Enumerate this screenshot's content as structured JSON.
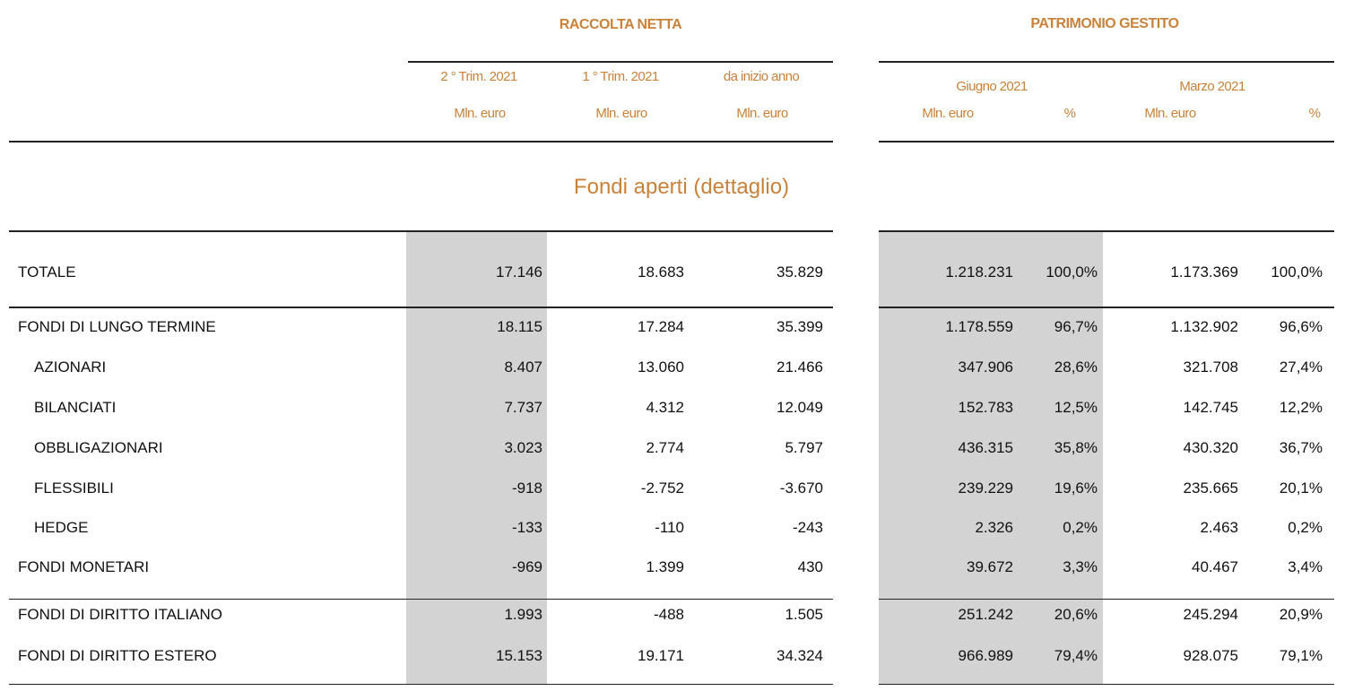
{
  "headers": {
    "raccolta_title": "RACCOLTA NETTA",
    "patrimonio_title": "PATRIMONIO GESTITO",
    "raccolta_cols": [
      "2 ° Trim. 2021",
      "1 ° Trim. 2021",
      "da inizio anno"
    ],
    "unit": "Mln. euro",
    "patrimonio_periods": [
      "Giugno 2021",
      "Marzo 2021"
    ],
    "pct": "%",
    "section_title": "Fondi aperti (dettaglio)"
  },
  "colors": {
    "accent": "#c8823a",
    "highlight": "#d3d3d3"
  },
  "rows": [
    {
      "label": "TOTALE",
      "indent": false,
      "values": [
        "17.146",
        "18.683",
        "35.829",
        "1.218.231",
        "100,0%",
        "1.173.369",
        "100,0%"
      ]
    },
    {
      "label": "FONDI DI LUNGO TERMINE",
      "indent": false,
      "values": [
        "18.115",
        "17.284",
        "35.399",
        "1.178.559",
        "96,7%",
        "1.132.902",
        "96,6%"
      ]
    },
    {
      "label": "AZIONARI",
      "indent": true,
      "values": [
        "8.407",
        "13.060",
        "21.466",
        "347.906",
        "28,6%",
        "321.708",
        "27,4%"
      ]
    },
    {
      "label": "BILANCIATI",
      "indent": true,
      "values": [
        "7.737",
        "4.312",
        "12.049",
        "152.783",
        "12,5%",
        "142.745",
        "12,2%"
      ]
    },
    {
      "label": "OBBLIGAZIONARI",
      "indent": true,
      "values": [
        "3.023",
        "2.774",
        "5.797",
        "436.315",
        "35,8%",
        "430.320",
        "36,7%"
      ]
    },
    {
      "label": "FLESSIBILI",
      "indent": true,
      "values": [
        "-918",
        "-2.752",
        "-3.670",
        "239.229",
        "19,6%",
        "235.665",
        "20,1%"
      ]
    },
    {
      "label": "HEDGE",
      "indent": true,
      "values": [
        "-133",
        "-110",
        "-243",
        "2.326",
        "0,2%",
        "2.463",
        "0,2%"
      ]
    },
    {
      "label": "FONDI MONETARI",
      "indent": false,
      "values": [
        "-969",
        "1.399",
        "430",
        "39.672",
        "3,3%",
        "40.467",
        "3,4%"
      ]
    },
    {
      "label": "FONDI DI DIRITTO ITALIANO",
      "indent": false,
      "values": [
        "1.993",
        "-488",
        "1.505",
        "251.242",
        "20,6%",
        "245.294",
        "20,9%"
      ]
    },
    {
      "label": "FONDI DI DIRITTO ESTERO",
      "indent": false,
      "values": [
        "15.153",
        "19.171",
        "34.324",
        "966.989",
        "79,4%",
        "928.075",
        "79,1%"
      ]
    }
  ]
}
